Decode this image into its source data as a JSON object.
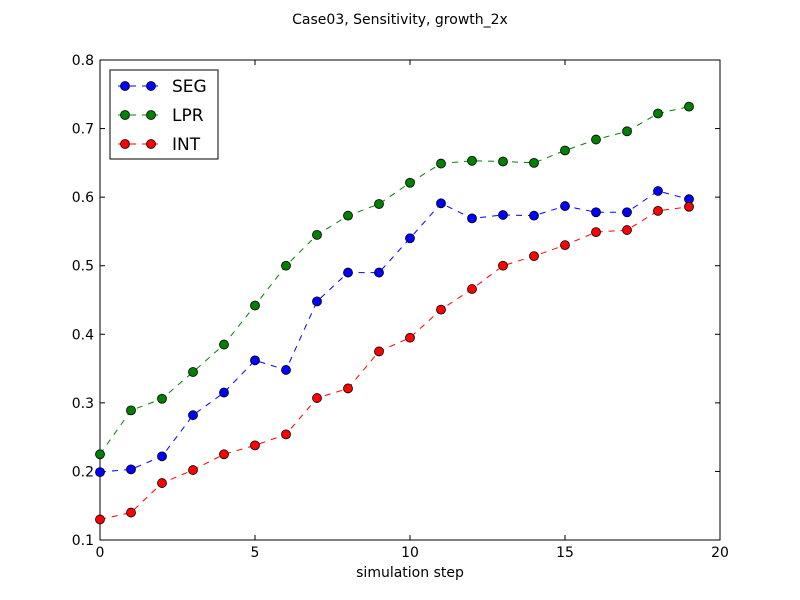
{
  "chart_data": {
    "type": "line",
    "title": "Case03, Sensitivity, growth_2x",
    "xlabel": "simulation step",
    "ylabel": "",
    "xlim": [
      0,
      20
    ],
    "ylim": [
      0.1,
      0.8
    ],
    "xticks": [
      0,
      5,
      10,
      15,
      20
    ],
    "yticks": [
      0.1,
      0.2,
      0.3,
      0.4,
      0.5,
      0.6,
      0.7,
      0.8
    ],
    "xtick_labels": [
      "0",
      "5",
      "10",
      "15",
      "20"
    ],
    "ytick_labels": [
      "0.1",
      "0.2",
      "0.3",
      "0.4",
      "0.5",
      "0.6",
      "0.7",
      "0.8"
    ],
    "grid": false,
    "legend_position": "top-left",
    "x": [
      0,
      1,
      2,
      3,
      4,
      5,
      6,
      7,
      8,
      9,
      10,
      11,
      12,
      13,
      14,
      15,
      16,
      17,
      18,
      19
    ],
    "series": [
      {
        "name": "SEG",
        "color": "#0000ff",
        "values": [
          0.199,
          0.203,
          0.222,
          0.282,
          0.315,
          0.362,
          0.348,
          0.448,
          0.49,
          0.49,
          0.54,
          0.591,
          0.569,
          0.574,
          0.573,
          0.587,
          0.578,
          0.578,
          0.609,
          0.597
        ]
      },
      {
        "name": "LPR",
        "color": "#008000",
        "values": [
          0.225,
          0.289,
          0.306,
          0.345,
          0.385,
          0.442,
          0.5,
          0.545,
          0.573,
          0.59,
          0.621,
          0.649,
          0.653,
          0.652,
          0.65,
          0.668,
          0.684,
          0.696,
          0.722,
          0.732
        ]
      },
      {
        "name": "INT",
        "color": "#ff0000",
        "values": [
          0.13,
          0.14,
          0.183,
          0.202,
          0.225,
          0.238,
          0.254,
          0.307,
          0.321,
          0.375,
          0.395,
          0.436,
          0.466,
          0.5,
          0.514,
          0.53,
          0.549,
          0.552,
          0.58,
          0.586
        ]
      }
    ]
  }
}
